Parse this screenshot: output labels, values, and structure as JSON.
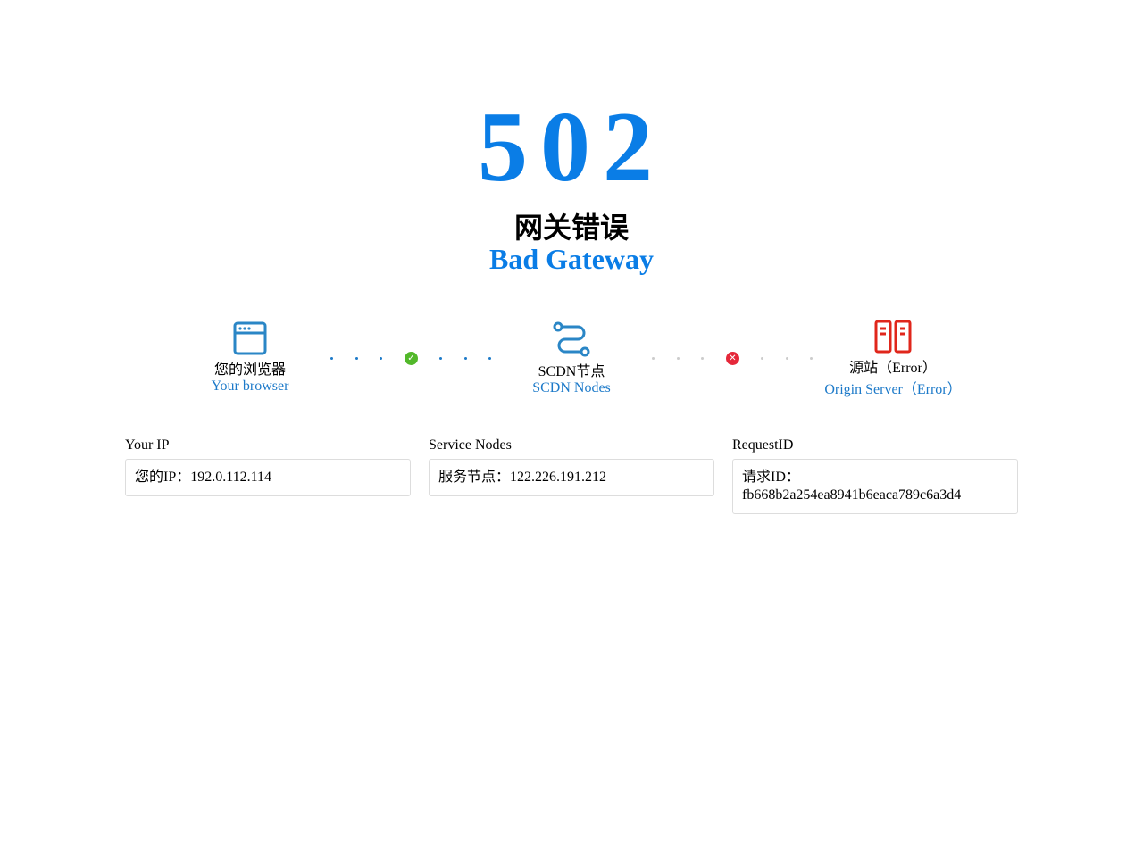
{
  "error": {
    "code": "502",
    "title_zh": "网关错误",
    "title_en": "Bad Gateway"
  },
  "nodes": [
    {
      "zh": "您的浏览器",
      "en": "Your browser",
      "icon": "browser-icon",
      "color": "#2a86c6"
    },
    {
      "zh": "SCDN节点",
      "en": "SCDN Nodes",
      "icon": "route-icon",
      "color": "#2a86c6"
    },
    {
      "zh": "源站（Error）",
      "en": "Origin Server（Error）",
      "icon": "server-icon",
      "color": "#e0261b"
    }
  ],
  "links": [
    {
      "status": "ok",
      "icon": "check-icon",
      "color": "#52b82a"
    },
    {
      "status": "error",
      "icon": "close-icon",
      "color": "#e5283a"
    }
  ],
  "info": [
    {
      "label": "Your IP",
      "value": "您的IP：192.0.112.114"
    },
    {
      "label": "Service Nodes",
      "value": "服务节点：122.226.191.212"
    },
    {
      "label": "RequestID",
      "value": "请求ID：\nfb668b2a254ea8941b6eaca789c6a3d4"
    }
  ]
}
